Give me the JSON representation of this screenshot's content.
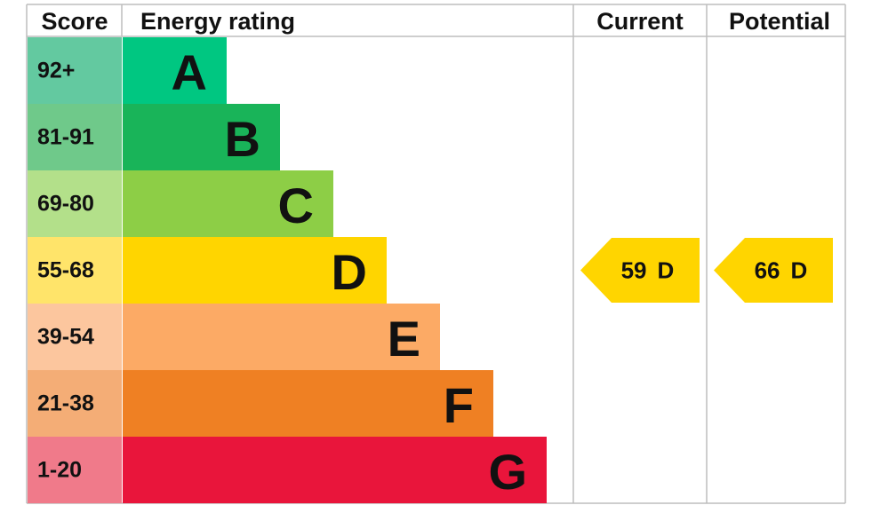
{
  "header": {
    "score": "Score",
    "rating": "Energy rating",
    "current": "Current",
    "potential": "Potential"
  },
  "rows": [
    {
      "score": "92+",
      "band": "A"
    },
    {
      "score": "81-91",
      "band": "B"
    },
    {
      "score": "69-80",
      "band": "C"
    },
    {
      "score": "55-68",
      "band": "D"
    },
    {
      "score": "39-54",
      "band": "E"
    },
    {
      "score": "21-38",
      "band": "F"
    },
    {
      "score": "1-20",
      "band": "G"
    }
  ],
  "current": {
    "value": 59,
    "band": "D"
  },
  "potential": {
    "value": 66,
    "band": "D"
  }
}
